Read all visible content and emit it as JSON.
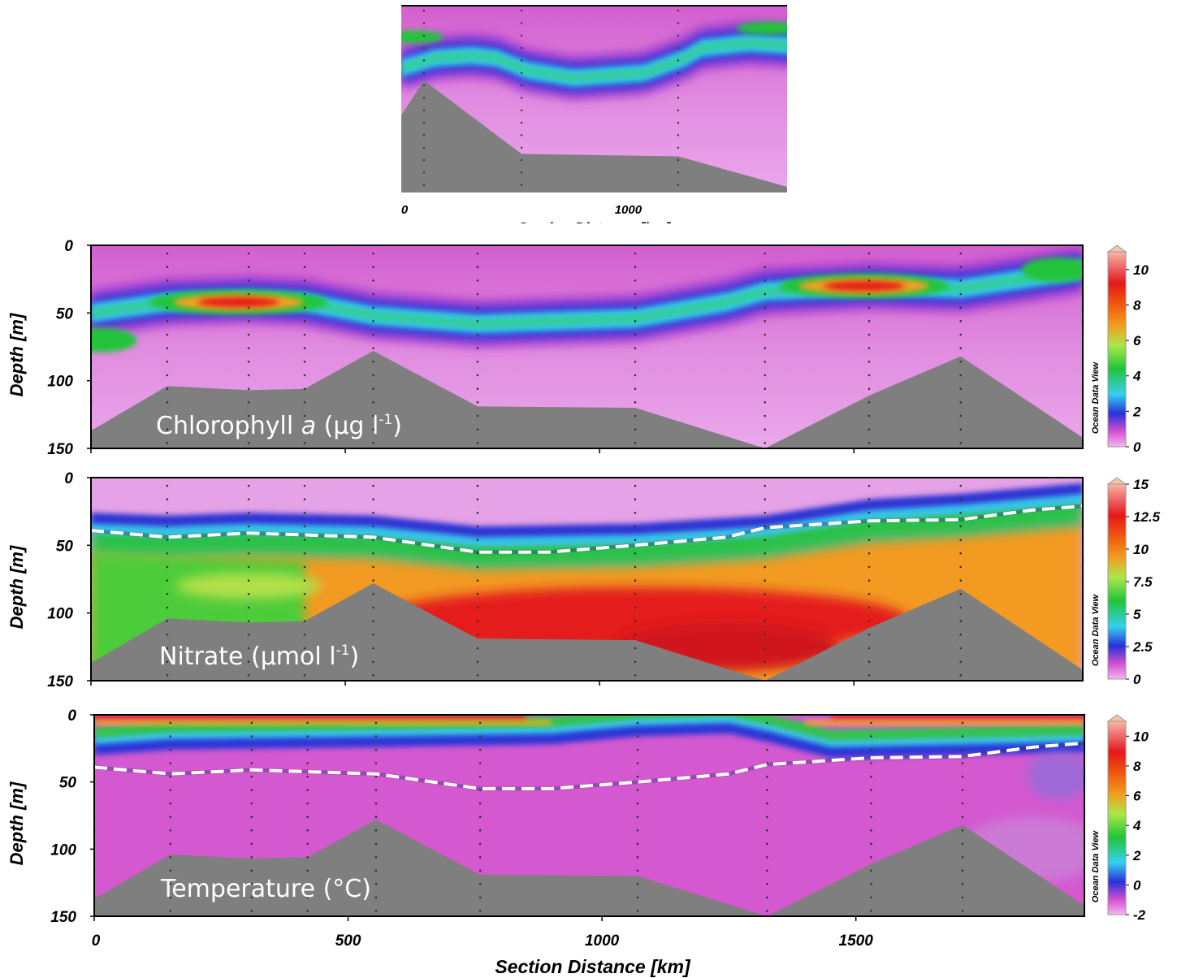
{
  "chart_data": [
    {
      "type": "heatmap",
      "panel": "inset",
      "x_tick_labels": [
        "0",
        "1000"
      ],
      "x_tick_values": [
        0,
        1000
      ],
      "xlabel": "Section Distance [km]",
      "xlim": [
        0,
        1950
      ],
      "ylim": [
        150,
        0
      ]
    },
    {
      "type": "heatmap",
      "panel": "chlorophyll",
      "label_prefix": "Chlorophyll ",
      "label_var": "a",
      "label_unit": " (µg l",
      "label_exp": "-1",
      "label_suffix": ")",
      "ylabel": "Depth [m]",
      "y_tick_labels": [
        "0",
        "50",
        "100",
        "150"
      ],
      "y_tick_values": [
        0,
        50,
        100,
        150
      ],
      "ylim": [
        150,
        0
      ],
      "colorbar_ticks": [
        "10",
        "8",
        "6",
        "4",
        "2",
        "0"
      ],
      "colorbar_values": [
        10,
        8,
        6,
        4,
        2,
        0
      ],
      "colorbar_range": [
        0,
        11
      ],
      "watermark": "Ocean Data View",
      "hotspots": [
        {
          "x": 290,
          "depth": 42,
          "value": 10
        },
        {
          "x": 1520,
          "depth": 30,
          "value": 9.5
        },
        {
          "x": 1900,
          "depth": 18,
          "value": 4
        },
        {
          "x": 20,
          "depth": 70,
          "value": 4
        }
      ]
    },
    {
      "type": "heatmap",
      "panel": "nitrate",
      "label_prefix": "Nitrate (µmol l",
      "label_exp": "-1",
      "label_suffix": ")",
      "ylabel": "Depth [m]",
      "y_tick_labels": [
        "0",
        "50",
        "100",
        "150"
      ],
      "y_tick_values": [
        0,
        50,
        100,
        150
      ],
      "ylim": [
        150,
        0
      ],
      "colorbar_ticks": [
        "15",
        "12.5",
        "10",
        "7.5",
        "5",
        "2.5",
        "0"
      ],
      "colorbar_values": [
        15,
        12.5,
        10,
        7.5,
        5,
        2.5,
        0
      ],
      "colorbar_range": [
        0,
        15
      ],
      "watermark": "Ocean Data View"
    },
    {
      "type": "heatmap",
      "panel": "temperature",
      "label_prefix": "Temperature (°C)",
      "ylabel": "Depth [m]",
      "xlabel": "Section Distance [km]",
      "y_tick_labels": [
        "0",
        "50",
        "100",
        "150"
      ],
      "y_tick_values": [
        0,
        50,
        100,
        150
      ],
      "ylim": [
        150,
        0
      ],
      "x_tick_labels": [
        "0",
        "500",
        "1000",
        "1500"
      ],
      "x_tick_values": [
        0,
        500,
        1000,
        1500
      ],
      "xlim": [
        0,
        1950
      ],
      "colorbar_ticks": [
        "10",
        "8",
        "6",
        "4",
        "2",
        "0",
        "-2"
      ],
      "colorbar_values": [
        10,
        8,
        6,
        4,
        2,
        0,
        -2
      ],
      "colorbar_range": [
        -2,
        11
      ],
      "watermark": "Ocean Data View"
    }
  ],
  "stations_km": [
    0,
    150,
    310,
    420,
    555,
    760,
    1070,
    1325,
    1530,
    1710,
    1950
  ],
  "bathymetry": [
    {
      "x": 0,
      "depth": 137
    },
    {
      "x": 150,
      "depth": 104
    },
    {
      "x": 310,
      "depth": 107
    },
    {
      "x": 420,
      "depth": 106
    },
    {
      "x": 555,
      "depth": 78
    },
    {
      "x": 760,
      "depth": 119
    },
    {
      "x": 1070,
      "depth": 120
    },
    {
      "x": 1325,
      "depth": 151
    },
    {
      "x": 1530,
      "depth": 111
    },
    {
      "x": 1710,
      "depth": 82
    },
    {
      "x": 1950,
      "depth": 142
    }
  ],
  "mixed_layer_depth": [
    {
      "x": 0,
      "depth": 39
    },
    {
      "x": 150,
      "depth": 44
    },
    {
      "x": 310,
      "depth": 41
    },
    {
      "x": 555,
      "depth": 44
    },
    {
      "x": 760,
      "depth": 55
    },
    {
      "x": 900,
      "depth": 55
    },
    {
      "x": 1070,
      "depth": 50
    },
    {
      "x": 1250,
      "depth": 44
    },
    {
      "x": 1325,
      "depth": 37
    },
    {
      "x": 1530,
      "depth": 32
    },
    {
      "x": 1710,
      "depth": 31
    },
    {
      "x": 1850,
      "depth": 24
    },
    {
      "x": 1950,
      "depth": 21
    }
  ],
  "colors": {
    "seafloor": "#7f7f7f",
    "background_magenta": "#d75fd2",
    "mld_line": "#ffffff"
  }
}
